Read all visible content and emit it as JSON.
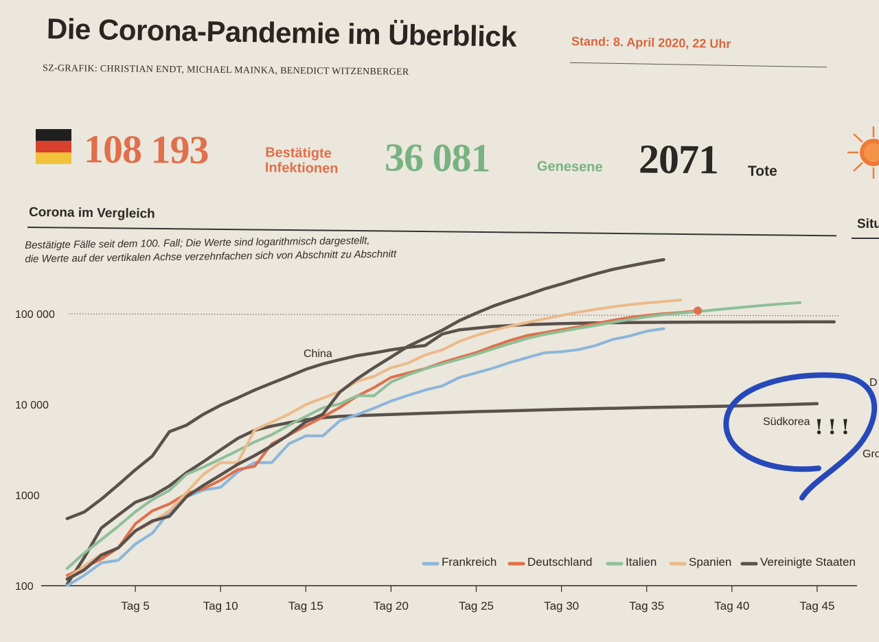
{
  "header": {
    "title": "Die Corona-Pandemie im Überblick",
    "stand": "Stand: 8. April 2020, 22 Uhr",
    "credit": "SZ-GRAFIK: CHRISTIAN ENDT, MICHAEL MAINKA, BENEDICT WITZENBERGER"
  },
  "stats": {
    "infections": {
      "value": "108 193",
      "label_line1": "Bestätigte",
      "label_line2": "Infektionen",
      "color": "#e06f4c"
    },
    "recovered": {
      "value": "36 081",
      "label": "Genesene",
      "color": "#78b282"
    },
    "deaths": {
      "value": "2071",
      "label": "Tote",
      "color": "#2b2724"
    },
    "flag_colors": [
      "#1f1f1f",
      "#d9412e",
      "#f2c23a"
    ]
  },
  "section": {
    "title": "Corona im Vergleich",
    "title_right": "Situ",
    "subtitle_line1": "Bestätigte Fälle seit dem 100. Fall; Die Werte sind logarithmisch dargestellt,",
    "subtitle_line2": "die Werte auf der vertikalen Achse verzehnfachen sich von Abschnitt zu Abschnitt"
  },
  "chart_data": {
    "type": "line",
    "title": "Corona im Vergleich",
    "xlabel": "",
    "ylabel": "",
    "yscale": "log",
    "ylim": [
      100,
      300000
    ],
    "xlim": [
      0,
      47
    ],
    "grid": "dotted line at 100 000",
    "legend_position": "bottom-right",
    "x_ticks": [
      5,
      10,
      15,
      20,
      25,
      30,
      35,
      40,
      45
    ],
    "x_tick_labels": [
      "Tag 5",
      "Tag 10",
      "Tag 15",
      "Tag 20",
      "Tag 25",
      "Tag 30",
      "Tag 35",
      "Tag 40",
      "Tag 45"
    ],
    "y_ticks": [
      100,
      1000,
      10000,
      100000
    ],
    "y_tick_labels": [
      "100",
      "1000",
      "10 000",
      "100 000"
    ],
    "annotations": [
      {
        "text": "China",
        "series": "China"
      },
      {
        "text": "Südkorea",
        "series": "Südkorea"
      },
      {
        "text": "D",
        "note": "cropped label at right edge"
      },
      {
        "text": "Gro",
        "note": "cropped label at right edge"
      }
    ],
    "handwritten": {
      "text": "!!!",
      "shape": "blue circle around Südkorea",
      "color": "#2748b8"
    },
    "series": [
      {
        "name": "China",
        "color": "#5a514c",
        "in_legend": false,
        "x": [
          1,
          2,
          3,
          4,
          5,
          6,
          7,
          8,
          9,
          10,
          11,
          12,
          13,
          14,
          15,
          16,
          17,
          18,
          19,
          20,
          21,
          22,
          23,
          24,
          26,
          28,
          30,
          32,
          34,
          36,
          38,
          40,
          42,
          44,
          46
        ],
        "y": [
          550,
          650,
          900,
          1300,
          1900,
          2700,
          5000,
          5900,
          7800,
          9800,
          11800,
          14400,
          17200,
          20400,
          24400,
          28000,
          31200,
          34500,
          37000,
          40000,
          42600,
          44600,
          59800,
          66500,
          72400,
          76000,
          78000,
          79300,
          80100,
          80600,
          81000,
          81100,
          81300,
          81400,
          81500
        ]
      },
      {
        "name": "Südkorea",
        "color": "#5a514c",
        "in_legend": false,
        "x": [
          1,
          2,
          3,
          4,
          5,
          6,
          7,
          8,
          9,
          10,
          11,
          12,
          13,
          14,
          15,
          16,
          17,
          18,
          20,
          22,
          25,
          30,
          35,
          40,
          45
        ],
        "y": [
          104,
          204,
          433,
          602,
          833,
          977,
          1261,
          1766,
          2337,
          3150,
          4212,
          5186,
          5766,
          6284,
          6767,
          7134,
          7382,
          7513,
          7755,
          7979,
          8320,
          8799,
          9241,
          9583,
          10200
        ]
      },
      {
        "name": "Frankreich",
        "color": "#8bb5d9",
        "in_legend": true,
        "x": [
          1,
          2,
          3,
          4,
          5,
          6,
          7,
          8,
          9,
          10,
          11,
          12,
          13,
          14,
          15,
          16,
          17,
          18,
          19,
          20,
          21,
          22,
          23,
          24,
          25,
          26,
          27,
          28,
          29,
          30,
          31,
          32,
          33,
          34,
          35,
          36
        ],
        "y": [
          100,
          130,
          178,
          191,
          288,
          380,
          656,
          957,
          1134,
          1217,
          1792,
          2281,
          2281,
          3660,
          4500,
          4500,
          6600,
          7700,
          9100,
          10900,
          12600,
          14400,
          16000,
          19800,
          22300,
          25200,
          29100,
          32900,
          37100,
          38100,
          40200,
          44600,
          52100,
          56900,
          64300,
          68600
        ]
      },
      {
        "name": "Deutschland",
        "color": "#e06f4c",
        "in_legend": true,
        "x": [
          1,
          2,
          3,
          4,
          5,
          6,
          7,
          8,
          9,
          10,
          11,
          12,
          13,
          14,
          15,
          16,
          17,
          18,
          19,
          20,
          21,
          22,
          23,
          24,
          25,
          26,
          27,
          28,
          29,
          30,
          31,
          32,
          33,
          34,
          35,
          36,
          37,
          38
        ],
        "y": [
          130,
          159,
          196,
          262,
          482,
          670,
          799,
          1040,
          1176,
          1457,
          1908,
          2078,
          3675,
          4585,
          5795,
          7272,
          9257,
          12327,
          15320,
          19848,
          22213,
          24873,
          29056,
          32986,
          37323,
          43938,
          50871,
          57695,
          62095,
          66885,
          71808,
          77872,
          84794,
          91159,
          96092,
          100123,
          103374,
          108193
        ]
      },
      {
        "name": "Italien",
        "color": "#8fbf99",
        "in_legend": true,
        "x": [
          1,
          2,
          3,
          4,
          5,
          6,
          7,
          8,
          9,
          10,
          11,
          12,
          13,
          14,
          15,
          16,
          17,
          18,
          19,
          20,
          21,
          22,
          23,
          24,
          25,
          26,
          27,
          28,
          29,
          30,
          31,
          32,
          33,
          34,
          35,
          36,
          37,
          38,
          39,
          40,
          41,
          42,
          43,
          44
        ],
        "y": [
          155,
          229,
          322,
          453,
          655,
          888,
          1128,
          1694,
          2036,
          2502,
          3089,
          3858,
          4636,
          5883,
          7375,
          9172,
          10149,
          12462,
          12462,
          17660,
          21157,
          24747,
          27980,
          31506,
          35713,
          41035,
          47021,
          53578,
          59138,
          63927,
          69176,
          74386,
          80589,
          86498,
          92472,
          97689,
          101739,
          105792,
          110574,
          115242,
          119827,
          124632,
          128948,
          132547
        ]
      },
      {
        "name": "Spanien",
        "color": "#ecb98a",
        "in_legend": true,
        "x": [
          1,
          2,
          3,
          4,
          5,
          6,
          7,
          8,
          9,
          10,
          11,
          12,
          13,
          14,
          15,
          16,
          17,
          18,
          19,
          20,
          21,
          22,
          23,
          24,
          25,
          26,
          27,
          28,
          29,
          30,
          31,
          32,
          33,
          34,
          35,
          36,
          37
        ],
        "y": [
          120,
          165,
          222,
          259,
          400,
          500,
          673,
          1073,
          1695,
          2277,
          2277,
          5232,
          6391,
          7798,
          9942,
          11748,
          13910,
          17963,
          20410,
          25374,
          28603,
          35136,
          39885,
          49515,
          57786,
          65719,
          73235,
          80110,
          87956,
          95923,
          104118,
          112065,
          119199,
          126168,
          131646,
          136675,
          141942
        ]
      },
      {
        "name": "Vereinigte Staaten",
        "color": "#5a514c",
        "in_legend": true,
        "x": [
          1,
          2,
          3,
          4,
          5,
          6,
          7,
          8,
          9,
          10,
          11,
          12,
          13,
          14,
          15,
          16,
          17,
          18,
          19,
          20,
          21,
          22,
          23,
          24,
          25,
          26,
          27,
          28,
          29,
          30,
          31,
          32,
          33,
          34,
          35,
          36
        ],
        "y": [
          118,
          149,
          217,
          262,
          402,
          518,
          583,
          959,
          1281,
          1663,
          2179,
          2726,
          3499,
          4632,
          6421,
          7786,
          13680,
          19101,
          25493,
          33276,
          43847,
          53740,
          65778,
          83836,
          101657,
          121478,
          140886,
          161807,
          188172,
          213372,
          243453,
          275586,
          308850,
          337072,
          366667,
          396223
        ]
      }
    ]
  }
}
